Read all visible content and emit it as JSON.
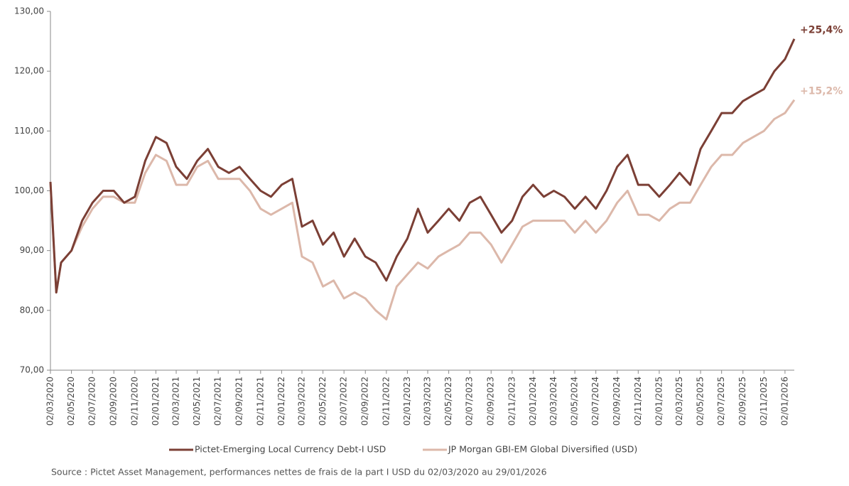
{
  "chart_data": {
    "type": "line",
    "x": [
      "02/03/2020",
      "19/03/2020",
      "02/04/2020",
      "02/05/2020",
      "02/06/2020",
      "02/07/2020",
      "02/08/2020",
      "02/09/2020",
      "02/10/2020",
      "02/11/2020",
      "02/12/2020",
      "02/01/2021",
      "02/02/2021",
      "02/03/2021",
      "02/04/2021",
      "02/05/2021",
      "02/06/2021",
      "02/07/2021",
      "02/08/2021",
      "02/09/2021",
      "02/10/2021",
      "02/11/2021",
      "02/12/2021",
      "02/01/2022",
      "02/02/2022",
      "02/03/2022",
      "02/04/2022",
      "02/05/2022",
      "02/06/2022",
      "02/07/2022",
      "02/08/2022",
      "02/09/2022",
      "02/10/2022",
      "02/11/2022",
      "02/12/2022",
      "02/01/2023",
      "02/02/2023",
      "02/03/2023",
      "02/04/2023",
      "02/05/2023",
      "02/06/2023",
      "02/07/2023",
      "02/08/2023",
      "02/09/2023",
      "02/10/2023",
      "02/11/2023",
      "02/12/2023",
      "02/01/2024",
      "02/02/2024",
      "02/03/2024",
      "02/04/2024",
      "02/05/2024",
      "02/06/2024",
      "02/07/2024",
      "02/08/2024",
      "02/09/2024",
      "02/10/2024",
      "02/11/2024",
      "02/12/2024",
      "02/01/2025",
      "02/02/2025",
      "02/03/2025",
      "02/04/2025",
      "02/05/2025",
      "02/06/2025",
      "02/07/2025",
      "02/08/2025",
      "02/09/2025",
      "02/10/2025",
      "02/11/2025",
      "02/12/2025",
      "02/01/2026",
      "29/01/2026"
    ],
    "series": [
      {
        "name": "Pictet-Emerging Local Currency Debt-I USD",
        "color": "#7b3f35",
        "end_label": "+25,4%",
        "values": [
          101.5,
          83,
          88,
          90,
          95,
          98,
          100,
          100,
          98,
          99,
          105,
          109,
          108,
          104,
          102,
          105,
          107,
          104,
          103,
          104,
          102,
          100,
          99,
          101,
          102,
          94,
          95,
          91,
          93,
          89,
          92,
          89,
          88,
          85,
          89,
          92,
          97,
          93,
          95,
          97,
          95,
          98,
          99,
          96,
          93,
          95,
          99,
          101,
          99,
          100,
          99,
          97,
          99,
          97,
          100,
          104,
          106,
          101,
          101,
          99,
          101,
          103,
          101,
          107,
          110,
          113,
          113,
          115,
          116,
          117,
          120,
          122,
          125.4
        ]
      },
      {
        "name": "JP Morgan GBI-EM Global Diversified (USD)",
        "color": "#dcb8aa",
        "end_label": "+15,2%",
        "values": [
          101.5,
          83,
          88,
          90,
          94,
          97,
          99,
          99,
          98,
          98,
          103,
          106,
          105,
          101,
          101,
          104,
          105,
          102,
          102,
          102,
          100,
          97,
          96,
          97,
          98,
          89,
          88,
          84,
          85,
          82,
          83,
          82,
          80,
          78.5,
          84,
          86,
          88,
          87,
          89,
          90,
          91,
          93,
          93,
          91,
          88,
          91,
          94,
          95,
          95,
          95,
          95,
          93,
          95,
          93,
          95,
          98,
          100,
          96,
          96,
          95,
          97,
          98,
          98,
          101,
          104,
          106,
          106,
          108,
          109,
          110,
          112,
          113,
          115.2
        ]
      }
    ],
    "xlim": [
      "02/03/2020",
      "29/01/2026"
    ],
    "xticks": [
      "02/03/2020",
      "02/05/2020",
      "02/07/2020",
      "02/09/2020",
      "02/11/2020",
      "02/01/2021",
      "02/03/2021",
      "02/05/2021",
      "02/07/2021",
      "02/09/2021",
      "02/11/2021",
      "02/01/2022",
      "02/03/2022",
      "02/05/2022",
      "02/07/2022",
      "02/09/2022",
      "02/11/2022",
      "02/01/2023",
      "02/03/2023",
      "02/05/2023",
      "02/07/2023",
      "02/09/2023",
      "02/11/2023",
      "02/01/2024",
      "02/03/2024",
      "02/05/2024",
      "02/07/2024",
      "02/09/2024",
      "02/11/2024",
      "02/01/2025",
      "02/03/2025",
      "02/05/2025",
      "02/07/2025",
      "02/09/2025",
      "02/11/2025",
      "02/01/2026"
    ],
    "ylim": [
      70,
      130
    ],
    "yticks": [
      {
        "value": 70,
        "label": "70,00"
      },
      {
        "value": 80,
        "label": "80,00"
      },
      {
        "value": 90,
        "label": "90,00"
      },
      {
        "value": 100,
        "label": "100,00"
      },
      {
        "value": 110,
        "label": "110,00"
      },
      {
        "value": 120,
        "label": "120,00"
      },
      {
        "value": 130,
        "label": "130,00"
      }
    ],
    "grid": false,
    "legend": "bottom",
    "source": "Source : Pictet Asset Management, performances nettes de frais de la part I USD du 02/03/2020 au 29/01/2026"
  }
}
